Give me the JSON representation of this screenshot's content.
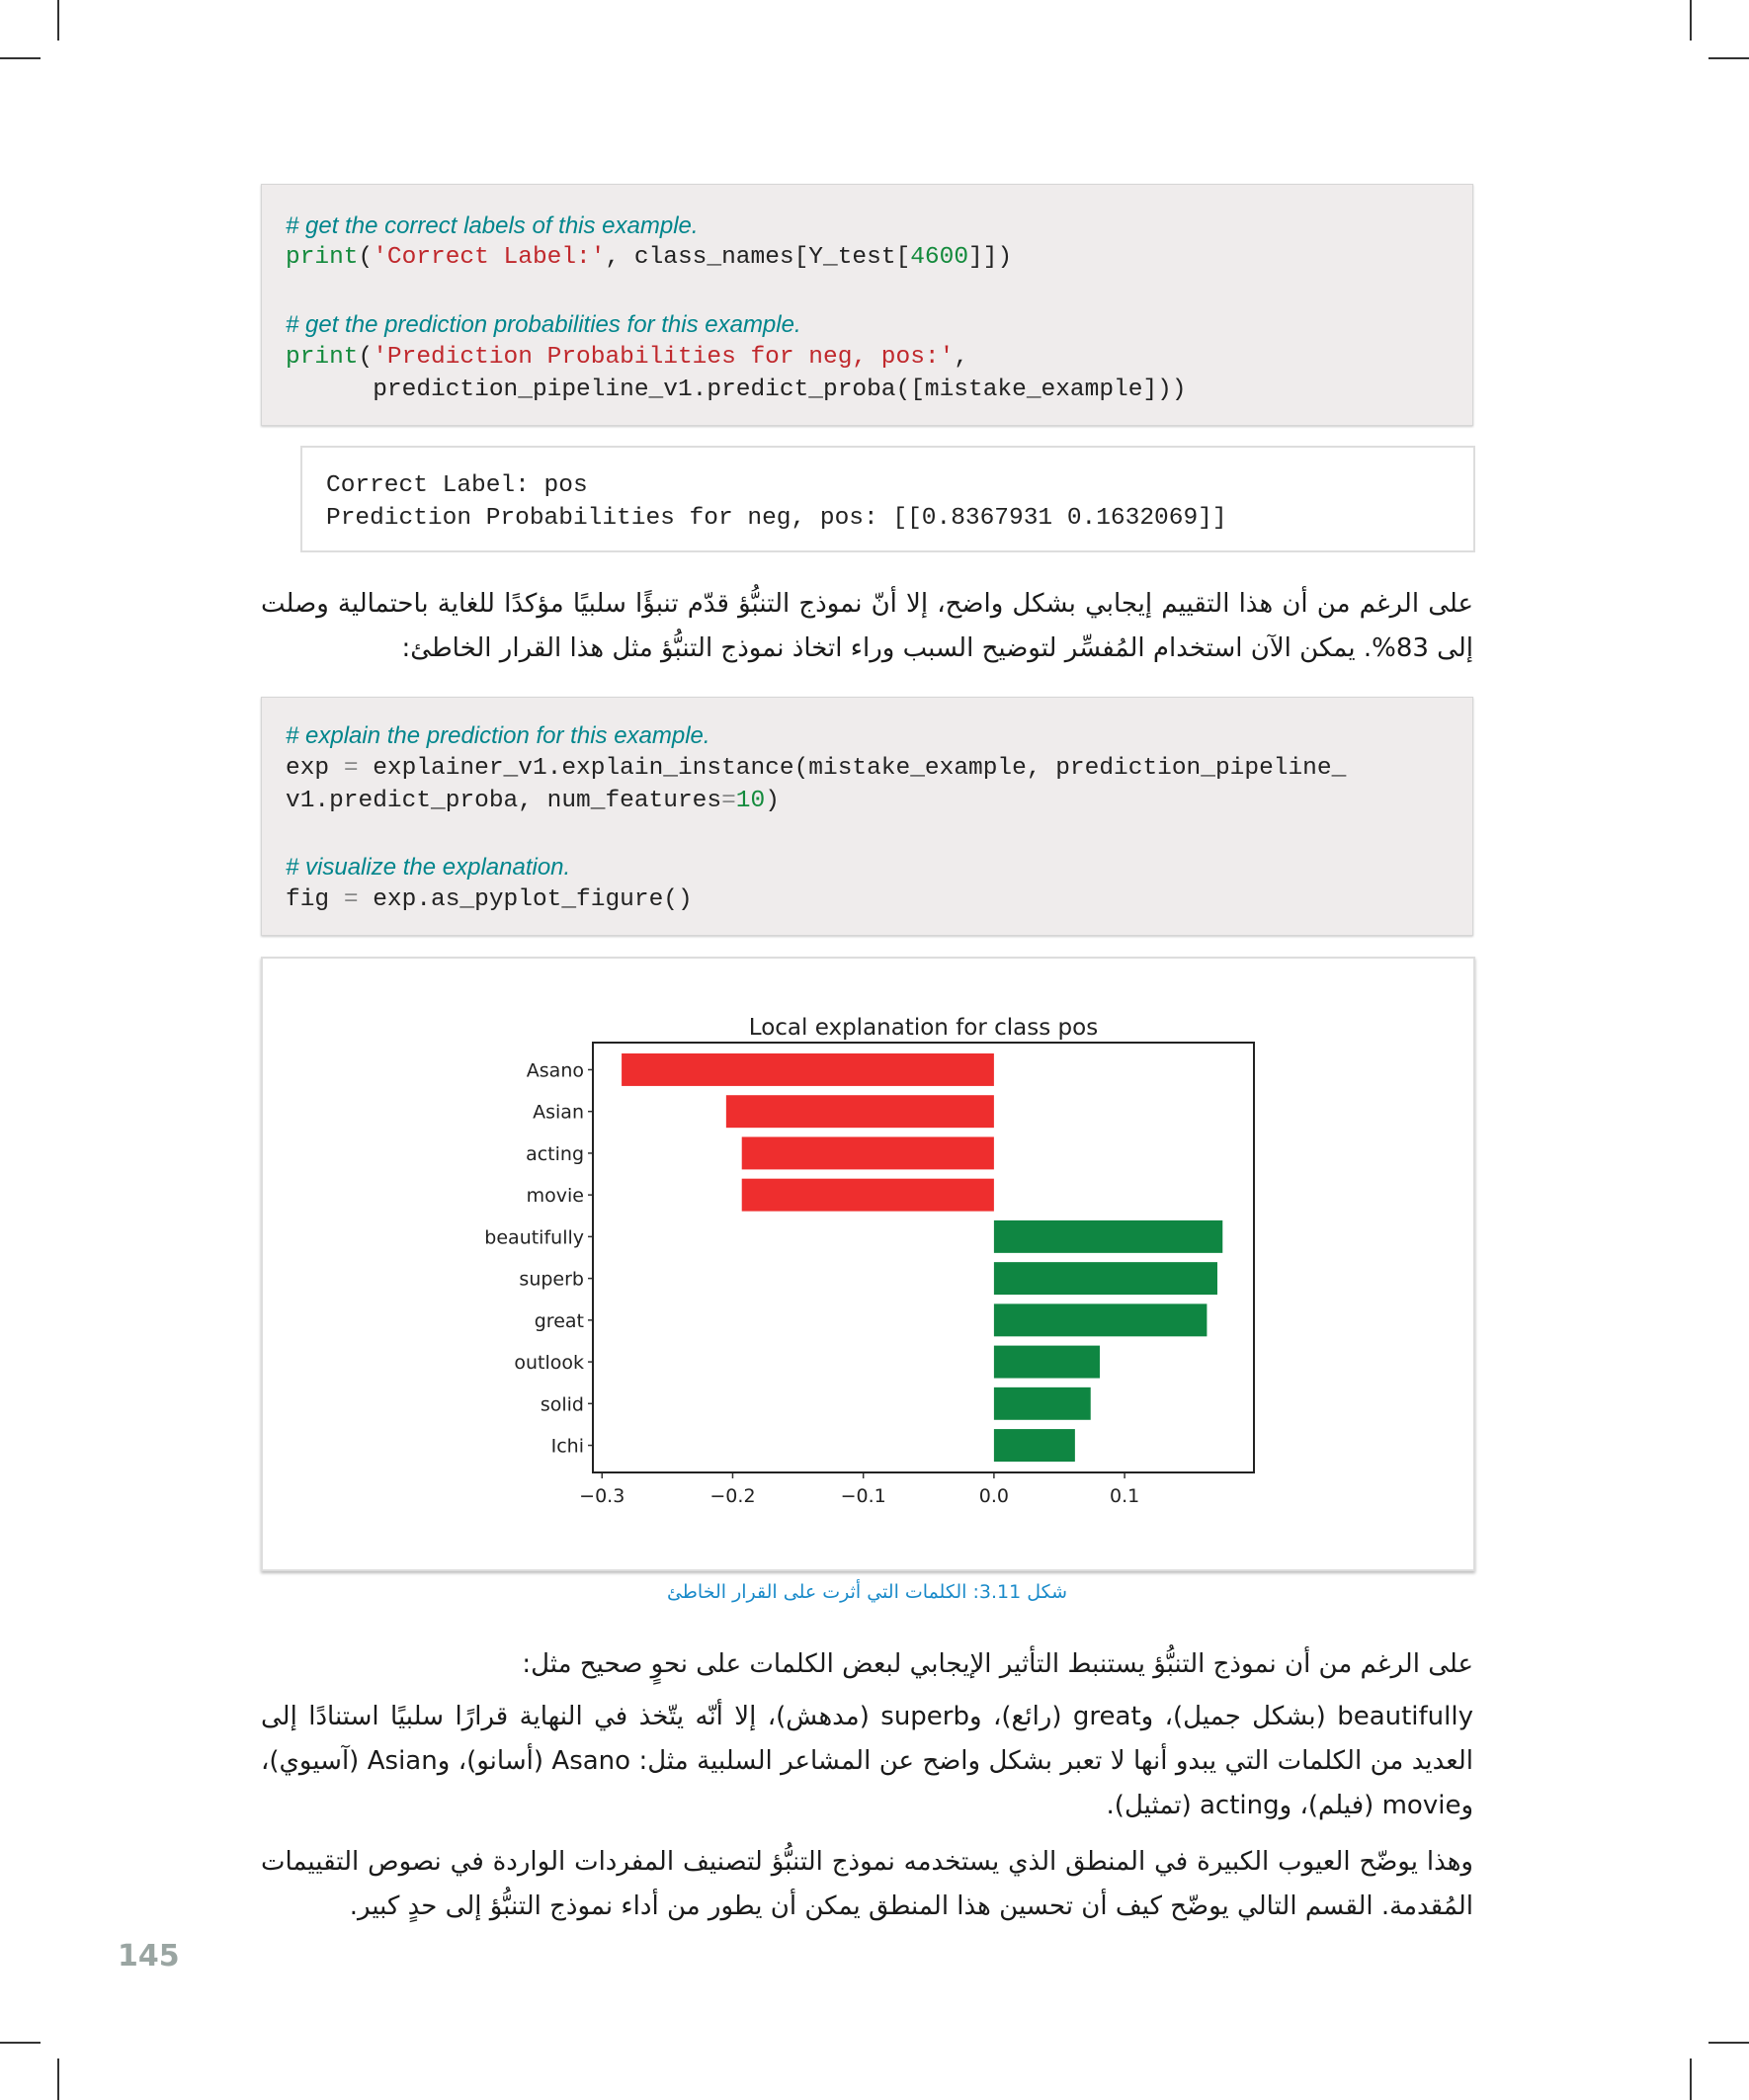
{
  "code_block_1": {
    "comment_1": "# get the correct labels of this example.",
    "line_1": {
      "fn": "print",
      "open": "(",
      "str": "'Correct Label:'",
      "rest_a": ", class_names[Y_test[",
      "num": "4600",
      "rest_b": "]])"
    },
    "comment_2": "# get the prediction probabilities for this example.",
    "line_2": {
      "fn": "print",
      "open": "(",
      "str": "'Prediction Probabilities for neg, pos:'",
      "rest": ","
    },
    "line_3": "      prediction_pipeline_v1.predict_proba([mistake_example]))"
  },
  "output_block": {
    "line_1": "Correct Label: pos",
    "line_2": "Prediction Probabilities for neg, pos: [[0.8367931 0.1632069]]"
  },
  "paragraph_1": "على الرغم من أن هذا التقييم إيجابي بشكل واضح، إلا أنّ نموذج التنبُّؤ قدّم تنبؤًا سلبيًا مؤكدًا للغاية باحتمالية وصلت إلى 83%. يمكن الآن استخدام المُفسِّر لتوضيح السبب وراء اتخاذ نموذج التنبُّؤ مثل هذا القرار الخاطئ:",
  "code_block_2": {
    "comment_1": "# explain the prediction for this example.",
    "line_1": {
      "a": "exp ",
      "eq": "=",
      "b": " explainer_v1.explain_instance(mistake_example, prediction_pipeline_"
    },
    "line_2": {
      "a": "v1.predict_proba, num_features",
      "eq": "=",
      "num": "10",
      "b": ")"
    },
    "comment_2": "# visualize the explanation.",
    "line_3": {
      "a": "fig ",
      "eq": "=",
      "b": " exp.as_pyplot_figure()"
    }
  },
  "chart_data": {
    "type": "bar",
    "orientation": "horizontal",
    "title": "Local explanation for class pos",
    "categories": [
      "Asano",
      "Asian",
      "acting",
      "movie",
      "beautifully",
      "superb",
      "great",
      "outlook",
      "solid",
      "Ichi"
    ],
    "values": [
      -0.285,
      -0.205,
      -0.193,
      -0.193,
      0.175,
      0.171,
      0.163,
      0.081,
      0.074,
      0.062
    ],
    "xlim": [
      -0.307,
      0.199
    ],
    "xticks": [
      "-0.3",
      "-0.2",
      "-0.1",
      "0.0",
      "0.1"
    ],
    "xtick_values": [
      -0.3,
      -0.2,
      -0.1,
      0.0,
      0.1
    ],
    "grid": false,
    "colors": {
      "negative": "#ee2e2e",
      "positive": "#0f8642"
    }
  },
  "caption": "شكل 3.11: الكلمات التي أثرت على القرار الخاطئ",
  "paragraph_2": "على الرغم من أن نموذج التنبُّؤ يستنبط التأثير الإيجابي لبعض الكلمات على نحوٍ صحيح مثل:",
  "paragraph_3": "beautifully (بشكل جميل)، وgreat (رائع)، وsuperb (مدهش)، إلا أنّه يتّخذ في النهاية قرارًا سلبيًا استنادًا إلى العديد من الكلمات التي يبدو أنها لا تعبر بشكل واضح عن المشاعر السلبية مثل: Asano (أسانو)، وAsian (آسيوي)، وmovie (فيلم)، وacting (تمثيل).",
  "paragraph_4": "وهذا يوضّح العيوب الكبيرة في المنطق الذي يستخدمه نموذج التنبُّؤ لتصنيف المفردات الواردة في نصوص التقييمات المُقدمة. القسم التالي يوضّح كيف أن تحسين هذا المنطق يمكن أن يطور من أداء نموذج التنبُّؤ إلى حدٍ كبير.",
  "page_number": "145"
}
